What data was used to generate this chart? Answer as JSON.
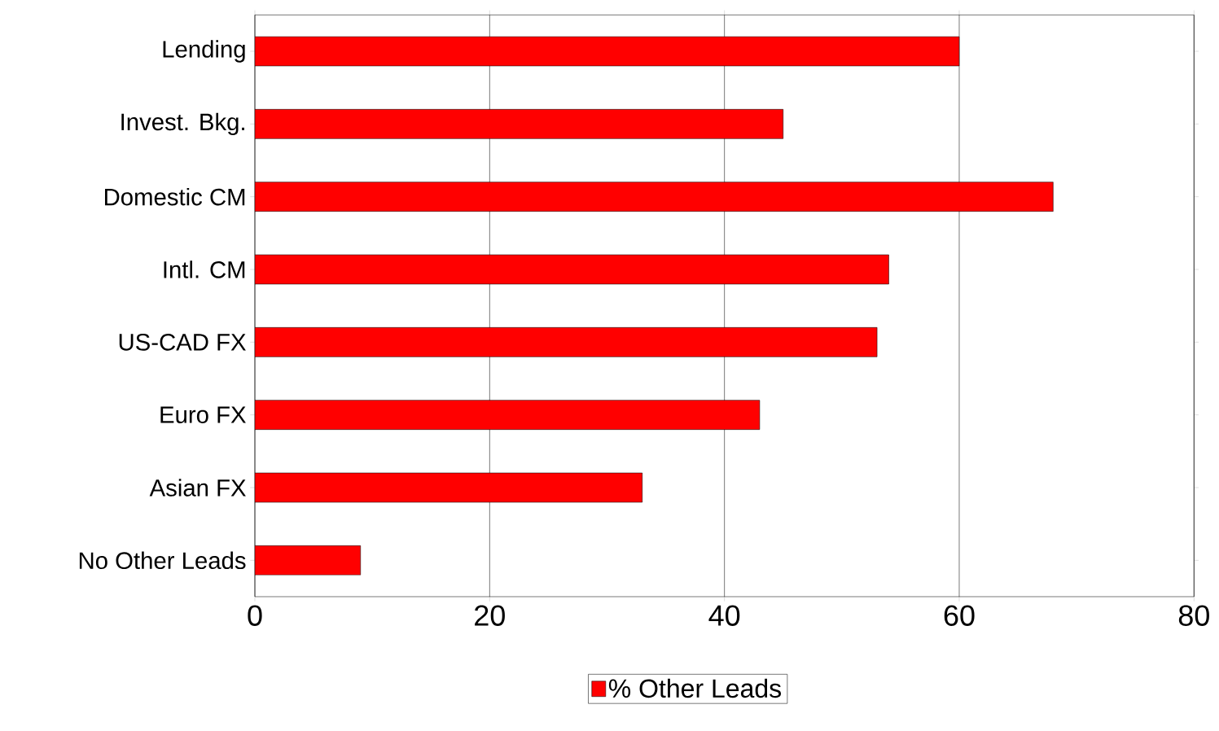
{
  "chart_data": {
    "type": "bar",
    "orientation": "horizontal",
    "categories": [
      "Lending",
      "Invest. Bkg.",
      "Domestic CM",
      "Intl. CM",
      "US-CAD FX",
      "Euro FX",
      "Asian FX",
      "No Other Leads"
    ],
    "series": [
      {
        "name": "% Other Leads",
        "color": "#ff0000",
        "values": [
          60,
          45,
          68,
          54,
          53,
          43,
          33,
          9
        ]
      }
    ],
    "xlim": [
      0,
      80
    ],
    "xticks": [
      0,
      20,
      40,
      60,
      80
    ],
    "grid": "x",
    "legend": "bottom"
  }
}
